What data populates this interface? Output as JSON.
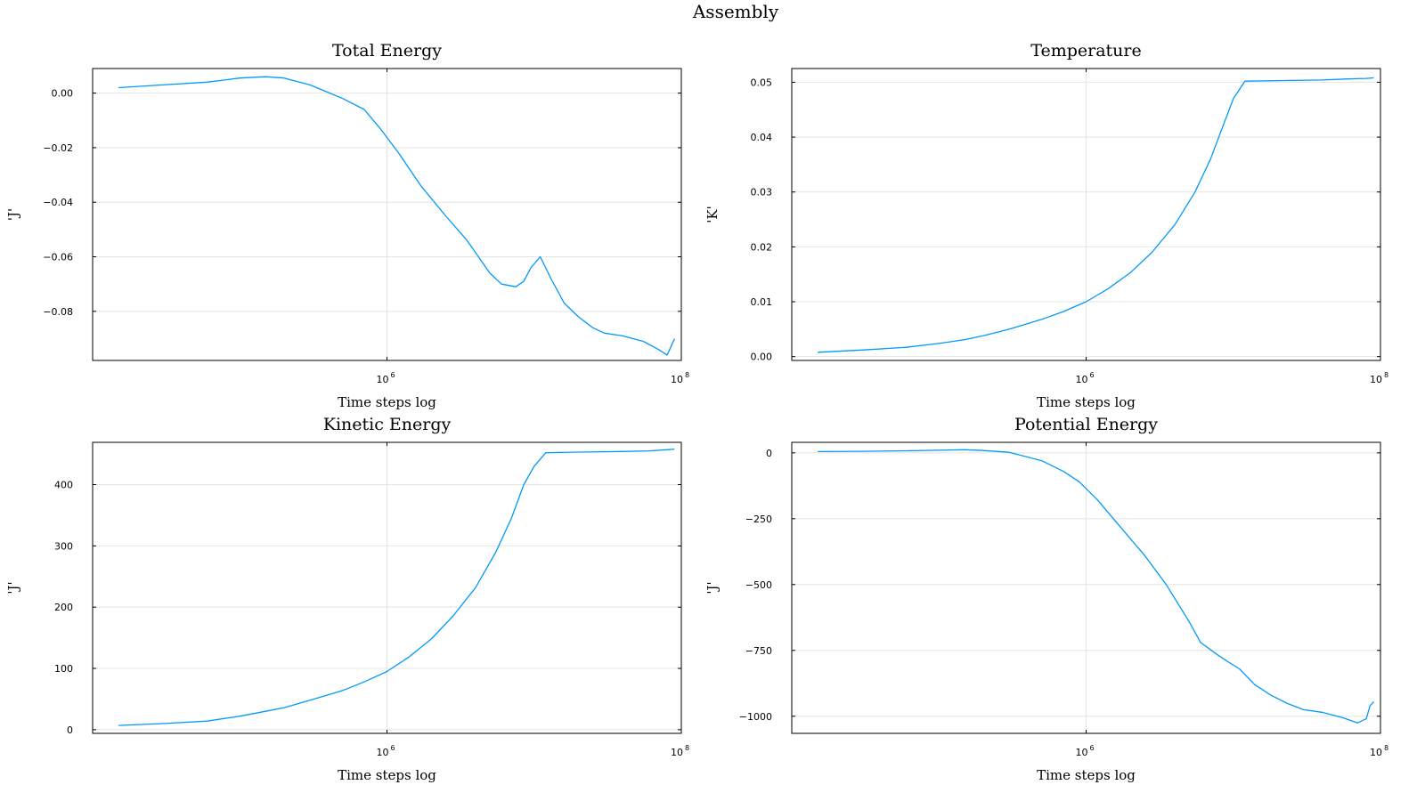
{
  "figure": {
    "title": "Assembly"
  },
  "chart_data": [
    {
      "type": "line",
      "title": "Total Energy",
      "xlabel": "Time steps log",
      "ylabel": "'J'",
      "xscale": "log10",
      "xlim": [
        10000,
        100000000
      ],
      "ylim": [
        -0.098,
        0.009
      ],
      "xticks": [
        {
          "base": "10",
          "exp": "6",
          "value": 1000000
        },
        {
          "base": "10",
          "exp": "8",
          "value": 100000000
        }
      ],
      "yticks": [
        {
          "value": 0,
          "label": "0.00"
        },
        {
          "value": -0.02,
          "label": "−0.02"
        },
        {
          "value": -0.04,
          "label": "−0.04"
        },
        {
          "value": -0.06,
          "label": "−0.06"
        },
        {
          "value": -0.08,
          "label": "−0.08"
        }
      ],
      "grid": true,
      "color": "#009AFA",
      "series": [
        {
          "x": [
            15000,
            30000,
            60000,
            100000,
            150000,
            200000,
            300000,
            500000,
            700000,
            900000,
            1200000,
            1700000,
            2500000,
            3500000,
            5000000,
            6000000,
            7500000,
            8500000,
            9500000,
            11000000,
            13000000,
            16000000,
            20000000,
            25000000,
            30000000,
            40000000,
            55000000,
            70000000,
            80000000,
            85000000,
            90000000
          ],
          "y": [
            0.002,
            0.003,
            0.004,
            0.0055,
            0.006,
            0.0055,
            0.003,
            -0.002,
            -0.006,
            -0.013,
            -0.022,
            -0.034,
            -0.045,
            -0.054,
            -0.066,
            -0.07,
            -0.071,
            -0.069,
            -0.064,
            -0.06,
            -0.068,
            -0.077,
            -0.082,
            -0.086,
            -0.088,
            -0.089,
            -0.091,
            -0.094,
            -0.096,
            -0.093,
            -0.09
          ]
        }
      ]
    },
    {
      "type": "line",
      "title": "Temperature",
      "xlabel": "Time steps log",
      "ylabel": "'K'",
      "xscale": "log10",
      "xlim": [
        10000,
        100000000
      ],
      "ylim": [
        -0.0007,
        0.0525
      ],
      "xticks": [
        {
          "base": "10",
          "exp": "6",
          "value": 1000000
        },
        {
          "base": "10",
          "exp": "8",
          "value": 100000000
        }
      ],
      "yticks": [
        {
          "value": 0,
          "label": "0.00"
        },
        {
          "value": 0.01,
          "label": "0.01"
        },
        {
          "value": 0.02,
          "label": "0.02"
        },
        {
          "value": 0.03,
          "label": "0.03"
        },
        {
          "value": 0.04,
          "label": "0.04"
        },
        {
          "value": 0.05,
          "label": "0.05"
        }
      ],
      "grid": true,
      "color": "#009AFA",
      "series": [
        {
          "x": [
            15000,
            30000,
            60000,
            100000,
            150000,
            200000,
            300000,
            500000,
            700000,
            1000000,
            1400000,
            2000000,
            2800000,
            4000000,
            5500000,
            7000000,
            8500000,
            10000000,
            12000000,
            20000000,
            40000000,
            60000000,
            80000000,
            90000000
          ],
          "y": [
            0.0008,
            0.0012,
            0.0017,
            0.0024,
            0.0031,
            0.0038,
            0.005,
            0.0068,
            0.0082,
            0.01,
            0.0123,
            0.0153,
            0.019,
            0.024,
            0.03,
            0.036,
            0.042,
            0.047,
            0.0502,
            0.0503,
            0.0504,
            0.0506,
            0.0507,
            0.0508
          ]
        }
      ]
    },
    {
      "type": "line",
      "title": "Kinetic Energy",
      "xlabel": "Time steps log",
      "ylabel": "'J'",
      "xscale": "log10",
      "xlim": [
        10000,
        100000000
      ],
      "ylim": [
        -6,
        469
      ],
      "xticks": [
        {
          "base": "10",
          "exp": "6",
          "value": 1000000
        },
        {
          "base": "10",
          "exp": "8",
          "value": 100000000
        }
      ],
      "yticks": [
        {
          "value": 0,
          "label": "0"
        },
        {
          "value": 100,
          "label": "100"
        },
        {
          "value": 200,
          "label": "200"
        },
        {
          "value": 300,
          "label": "300"
        },
        {
          "value": 400,
          "label": "400"
        }
      ],
      "grid": true,
      "color": "#009AFA",
      "series": [
        {
          "x": [
            15000,
            30000,
            60000,
            100000,
            150000,
            200000,
            300000,
            500000,
            700000,
            1000000,
            1400000,
            2000000,
            2800000,
            4000000,
            5500000,
            7000000,
            8500000,
            10000000,
            12000000,
            20000000,
            40000000,
            60000000,
            80000000,
            90000000
          ],
          "y": [
            7,
            10,
            14,
            22,
            30,
            36,
            48,
            64,
            78,
            95,
            118,
            148,
            185,
            232,
            290,
            345,
            400,
            430,
            452,
            453,
            454,
            455,
            457,
            458
          ]
        }
      ]
    },
    {
      "type": "line",
      "title": "Potential Energy",
      "xlabel": "Time steps log",
      "ylabel": "'J'",
      "xscale": "log10",
      "xlim": [
        10000,
        100000000
      ],
      "ylim": [
        -1065,
        40
      ],
      "xticks": [
        {
          "base": "10",
          "exp": "6",
          "value": 1000000
        },
        {
          "base": "10",
          "exp": "8",
          "value": 100000000
        }
      ],
      "yticks": [
        {
          "value": 0,
          "label": "0"
        },
        {
          "value": -250,
          "label": "−250"
        },
        {
          "value": -500,
          "label": "−500"
        },
        {
          "value": -750,
          "label": "−750"
        },
        {
          "value": -1000,
          "label": "−1000"
        }
      ],
      "grid": true,
      "color": "#009AFA",
      "series": [
        {
          "x": [
            15000,
            30000,
            60000,
            100000,
            150000,
            200000,
            300000,
            500000,
            700000,
            900000,
            1200000,
            1700000,
            2500000,
            3500000,
            5000000,
            6000000,
            7500000,
            9000000,
            11000000,
            14000000,
            18000000,
            23000000,
            30000000,
            40000000,
            55000000,
            70000000,
            80000000,
            85000000,
            90000000
          ],
          "y": [
            5,
            6,
            8,
            10,
            12,
            9,
            2,
            -30,
            -70,
            -110,
            -180,
            -280,
            -390,
            -500,
            -640,
            -720,
            -760,
            -790,
            -820,
            -880,
            -920,
            -950,
            -975,
            -985,
            -1005,
            -1025,
            -1010,
            -960,
            -945
          ]
        }
      ]
    }
  ]
}
